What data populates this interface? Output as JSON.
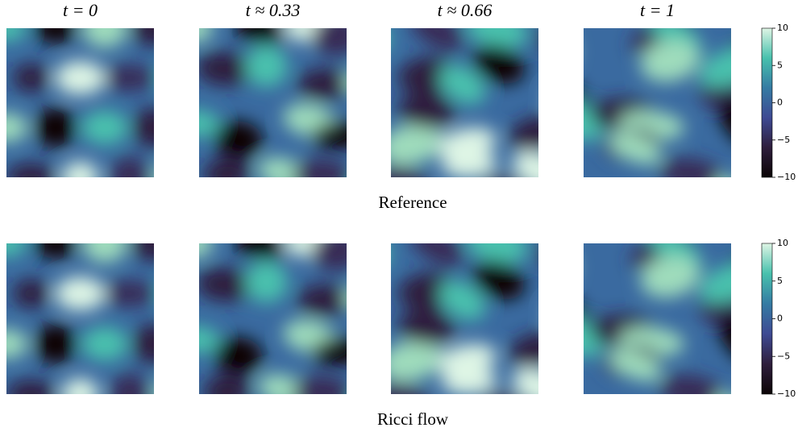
{
  "chart_data": [
    {
      "type": "heatmap",
      "title": "Reference",
      "panel_titles": [
        "t = 0",
        "t ≈ 0.33",
        "t ≈ 0.66",
        "t = 1"
      ],
      "colorbar": {
        "ylim": [
          -10,
          10
        ],
        "yticks": [
          {
            "value": -10,
            "label": "−10"
          },
          {
            "value": -5,
            "label": "−5"
          },
          0,
          5,
          10
        ]
      }
    },
    {
      "type": "heatmap",
      "title": "Ricci flow",
      "colorbar": {
        "ylim": [
          -10,
          10
        ],
        "yticks": [
          {
            "value": -10,
            "label": "−10"
          },
          {
            "value": -5,
            "label": "−5"
          },
          0,
          5,
          10
        ]
      }
    }
  ]
}
